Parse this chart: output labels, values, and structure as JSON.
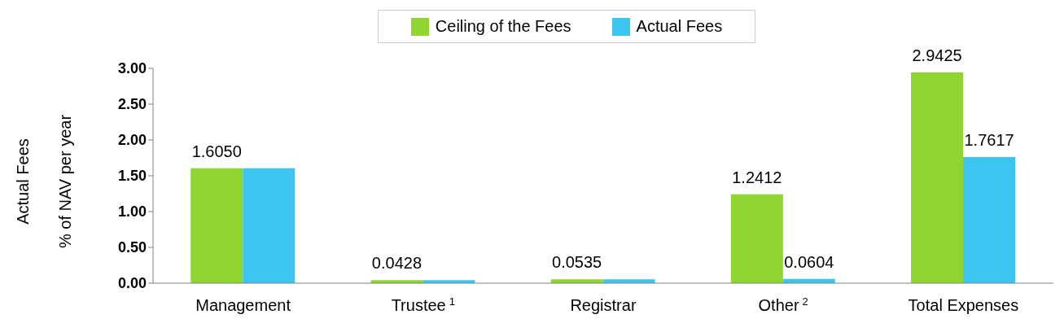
{
  "chart_data": {
    "type": "bar",
    "ylabel": "Actual Fees\n% of NAV per year",
    "categories": [
      "Management",
      "Trustee$^{1}$",
      "Registrar",
      "Other$^{2}$",
      "Total Expenses"
    ],
    "series": [
      {
        "name": "Ceiling of the Fees",
        "color": "#8fd630",
        "values": [
          1.605,
          0.0428,
          0.0535,
          1.2412,
          2.9425
        ],
        "value_labels": [
          "1.6050",
          "0.0428",
          "0.0535",
          "1.2412",
          "2.9425"
        ]
      },
      {
        "name": "Actual Fees",
        "color": "#3cc6ef",
        "values": [
          1.605,
          0.0428,
          0.0535,
          0.0604,
          1.7617
        ],
        "value_labels": [
          null,
          null,
          null,
          "0.0604",
          "1.7617"
        ]
      }
    ],
    "ylim": [
      0,
      3
    ],
    "yticks": [
      {
        "value": 0,
        "label": "0.00"
      },
      {
        "value": 0.5,
        "label": "0.50"
      },
      {
        "value": 1,
        "label": "1.00"
      },
      {
        "value": 1.5,
        "label": "1.50"
      },
      {
        "value": 2,
        "label": "2.00"
      },
      {
        "value": 2.5,
        "label": "2.50"
      },
      {
        "value": 3,
        "label": "3.00"
      }
    ],
    "grid": false,
    "legend": "top"
  }
}
